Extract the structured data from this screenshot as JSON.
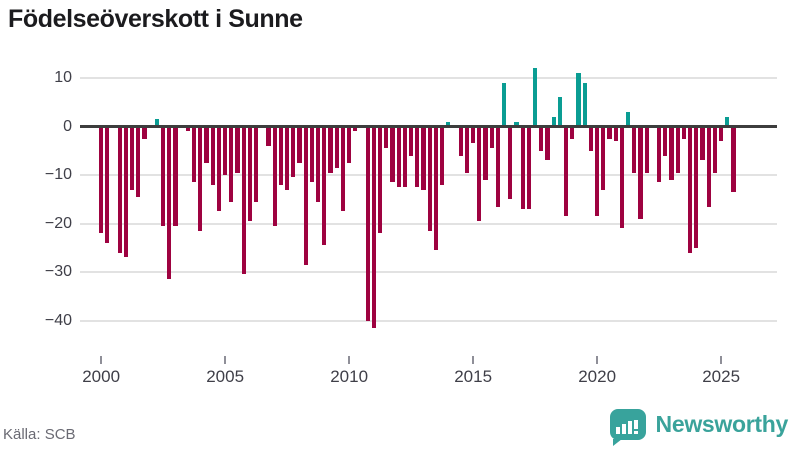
{
  "title": "Födelseöverskott i Sunne",
  "source": "Källa: SCB",
  "brand": {
    "name": "Newsworthy",
    "color": "#38a39c"
  },
  "colors": {
    "negative_bar": "#9e0240",
    "positive_bar": "#0a9d93",
    "gridline": "#e2e2e2",
    "zero_line": "#3d3d3d",
    "axis_text": "#3f3f48",
    "source_text": "#6a6a73"
  },
  "chart_data": {
    "type": "bar",
    "title": "Födelseöverskott i Sunne",
    "xlabel": "",
    "ylabel": "",
    "frequency": "quarterly",
    "x_start": "2000-Q1",
    "x_end": "2025-Q3",
    "grid": "horizontal",
    "legend": "none",
    "ylim": [
      -47,
      15
    ],
    "yticks": [
      10,
      0,
      -10,
      -20,
      -30,
      -40
    ],
    "xticks": [
      2000,
      2005,
      2010,
      2015,
      2020,
      2025
    ],
    "values": [
      -22,
      -24,
      0,
      -26,
      -27,
      -13,
      -14.5,
      -2.5,
      0,
      1.5,
      -20.5,
      -31.5,
      -20.5,
      0,
      -1,
      -11.5,
      -21.5,
      -7.5,
      -12,
      -17.5,
      -10,
      -15.5,
      -9.5,
      -30.5,
      -19.5,
      -15.5,
      0,
      -4,
      -20.5,
      -12,
      -13,
      -10.5,
      -7.5,
      -28.5,
      -11.5,
      -15.5,
      -24.5,
      -9.5,
      -8.5,
      -17.5,
      -7.5,
      -1,
      0,
      -40,
      -41.5,
      -22,
      -4.5,
      -11.5,
      -12.5,
      -12.5,
      -6,
      -12.5,
      -13,
      -21.5,
      -25.5,
      -12,
      1,
      0,
      -6,
      -9.5,
      -3.5,
      -19.5,
      -11,
      -4.5,
      -16.5,
      9,
      -15,
      1,
      -17,
      -17,
      12,
      -5,
      -7,
      2,
      6,
      -18.5,
      -2.5,
      11,
      9,
      -5,
      -18.5,
      -13,
      -2.5,
      -3,
      -21,
      3,
      -9.5,
      -19,
      -9.5,
      0,
      -11.5,
      -6,
      -11,
      -9.5,
      -2.5,
      -26,
      -25,
      -7,
      -16.5,
      -9.5,
      -3,
      2,
      -13.5
    ]
  }
}
